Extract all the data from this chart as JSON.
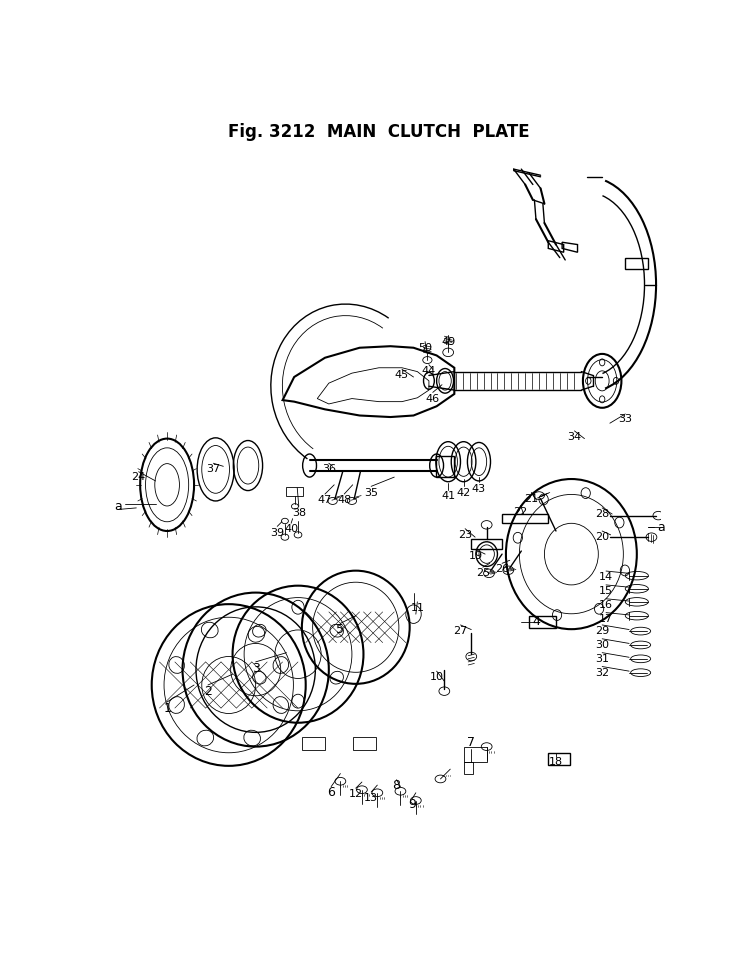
{
  "title": "Fig. 3212  MAIN  CLUTCH  PLATE",
  "bg_color": "#ffffff",
  "line_color": "#000000",
  "text_color": "#000000",
  "fig_width": 7.37,
  "fig_height": 9.6,
  "dpi": 100
}
